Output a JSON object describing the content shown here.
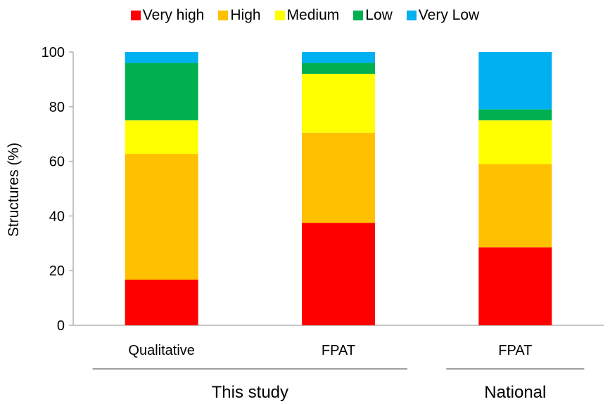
{
  "chart_data": {
    "type": "bar",
    "stacked": true,
    "categories": [
      "Qualitative",
      "FPAT",
      "FPAT"
    ],
    "groups": [
      {
        "label": "This study",
        "categories": [
          0,
          1
        ]
      },
      {
        "label": "National",
        "categories": [
          2
        ]
      }
    ],
    "series": [
      {
        "name": "Very high",
        "color": "#ff0000",
        "values": [
          16.7,
          37.5,
          28.5
        ]
      },
      {
        "name": "High",
        "color": "#ffc000",
        "values": [
          46.0,
          33.0,
          30.5
        ]
      },
      {
        "name": "Medium",
        "color": "#ffff00",
        "values": [
          12.3,
          21.5,
          16.0
        ]
      },
      {
        "name": "Low",
        "color": "#00b050",
        "values": [
          21.0,
          4.0,
          4.0
        ]
      },
      {
        "name": "Very Low",
        "color": "#00b0f0",
        "values": [
          4.0,
          4.0,
          21.0
        ]
      }
    ],
    "ylabel": "Structures (%)",
    "xlabel": "",
    "title": "",
    "ylim": [
      0,
      100
    ],
    "yticks": [
      0,
      20,
      40,
      60,
      80,
      100
    ],
    "grid": false,
    "legend_position": "top"
  }
}
